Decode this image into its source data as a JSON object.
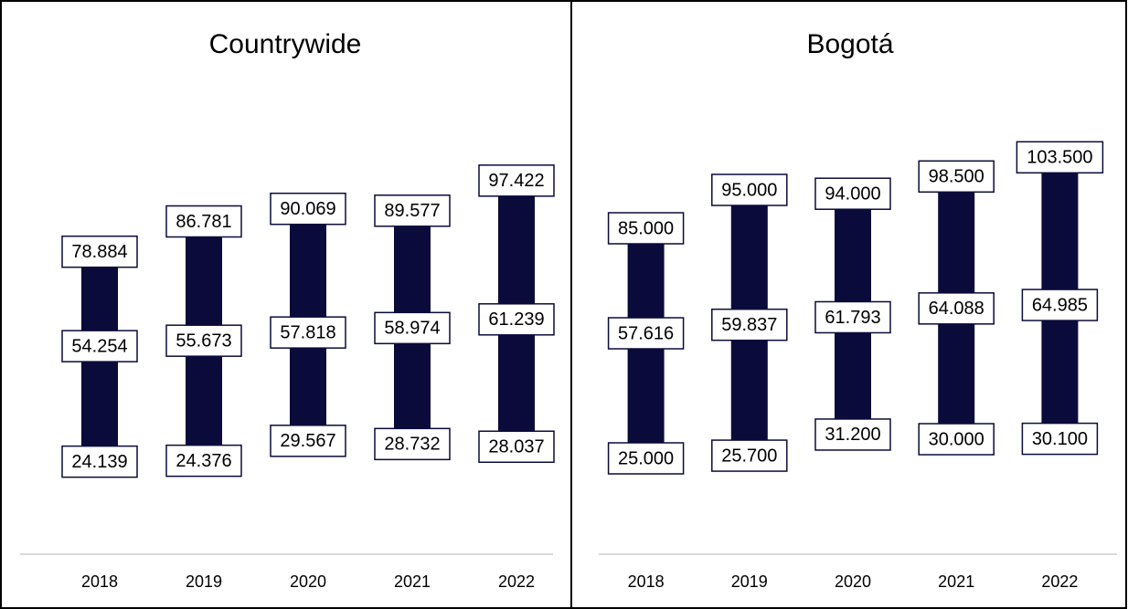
{
  "chart_data": [
    {
      "type": "range",
      "title": "Countrywide",
      "categories": [
        "2018",
        "2019",
        "2020",
        "2021",
        "2022"
      ],
      "color": "#0b0b3b",
      "ylim": [
        0,
        120000
      ],
      "series": [
        {
          "values": [
            24139,
            24376,
            29567,
            28732,
            28037
          ],
          "value_labels": [
            "24.139",
            "24.376",
            "29.567",
            "28.732",
            "28.037"
          ]
        },
        {
          "values": [
            54254,
            55673,
            57818,
            58974,
            61239
          ],
          "value_labels": [
            "54.254",
            "55.673",
            "57.818",
            "58.974",
            "61.239"
          ]
        },
        {
          "values": [
            78884,
            86781,
            90069,
            89577,
            97422
          ],
          "value_labels": [
            "78.884",
            "86.781",
            "90.069",
            "89.577",
            "97.422"
          ]
        }
      ]
    },
    {
      "type": "range",
      "title": "Bogotá",
      "categories": [
        "2018",
        "2019",
        "2020",
        "2021",
        "2022"
      ],
      "color": "#0b0b3b",
      "ylim": [
        0,
        120000
      ],
      "series": [
        {
          "values": [
            25000,
            25700,
            31200,
            30000,
            30100
          ],
          "value_labels": [
            "25.000",
            "25.700",
            "31.200",
            "30.000",
            "30.100"
          ]
        },
        {
          "values": [
            57616,
            59837,
            61793,
            64088,
            64985
          ],
          "value_labels": [
            "57.616",
            "59.837",
            "61.793",
            "64.088",
            "64.985"
          ]
        },
        {
          "values": [
            85000,
            95000,
            94000,
            98500,
            103500
          ],
          "value_labels": [
            "85.000",
            "95.000",
            "94.000",
            "98.500",
            "103.500"
          ]
        }
      ]
    }
  ]
}
